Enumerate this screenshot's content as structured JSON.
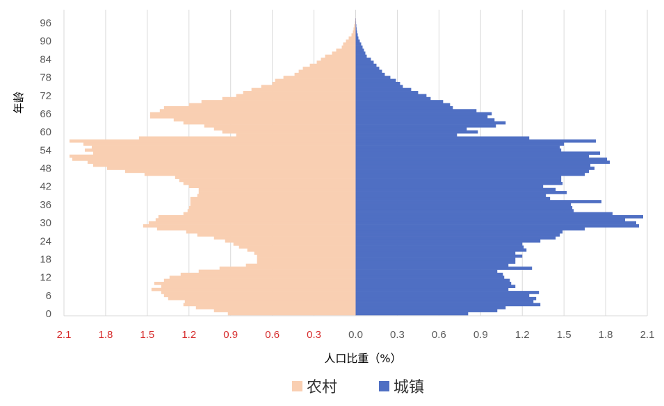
{
  "chart_data": {
    "type": "bar",
    "orientation": "horizontal-pyramid",
    "xlabel": "人口比重（%）",
    "ylabel": "年龄",
    "xlim": [
      -2.1,
      2.1
    ],
    "ylim": [
      0,
      96
    ],
    "grid": true,
    "legend_position": "bottom-center",
    "x_ticks": [
      {
        "value": -2.1,
        "label": "2.1"
      },
      {
        "value": -1.8,
        "label": "1.8"
      },
      {
        "value": -1.5,
        "label": "1.5"
      },
      {
        "value": -1.2,
        "label": "1.2"
      },
      {
        "value": -0.9,
        "label": "0.9"
      },
      {
        "value": -0.6,
        "label": "0.6"
      },
      {
        "value": -0.3,
        "label": "0.3"
      },
      {
        "value": 0.0,
        "label": "0.0"
      },
      {
        "value": 0.3,
        "label": "0.3"
      },
      {
        "value": 0.6,
        "label": "0.6"
      },
      {
        "value": 0.9,
        "label": "0.9"
      },
      {
        "value": 1.2,
        "label": "1.2"
      },
      {
        "value": 1.5,
        "label": "1.5"
      },
      {
        "value": 1.8,
        "label": "1.8"
      },
      {
        "value": 2.1,
        "label": "2.1"
      }
    ],
    "y_ticks": [
      "0",
      "6",
      "12",
      "18",
      "24",
      "30",
      "36",
      "42",
      "48",
      "54",
      "60",
      "66",
      "72",
      "78",
      "84",
      "90",
      "96"
    ],
    "ages": [
      0,
      1,
      2,
      3,
      4,
      5,
      6,
      7,
      8,
      9,
      10,
      11,
      12,
      13,
      14,
      15,
      16,
      17,
      18,
      19,
      20,
      21,
      22,
      23,
      24,
      25,
      26,
      27,
      28,
      29,
      30,
      31,
      32,
      33,
      34,
      35,
      36,
      37,
      38,
      39,
      40,
      41,
      42,
      43,
      44,
      45,
      46,
      47,
      48,
      49,
      50,
      51,
      52,
      53,
      54,
      55,
      56,
      57,
      58,
      59,
      60,
      61,
      62,
      63,
      64,
      65,
      66,
      67,
      68,
      69,
      70,
      71,
      72,
      73,
      74,
      75,
      76,
      77,
      78,
      79,
      80,
      81,
      82,
      83,
      84,
      85,
      86,
      87,
      88,
      89,
      90,
      91,
      92,
      93,
      94,
      95,
      96,
      97
    ],
    "series": [
      {
        "name": "农村",
        "color": "#f9cfb2",
        "side": "left",
        "values": [
          0.92,
          1.02,
          1.15,
          1.24,
          1.23,
          1.35,
          1.38,
          1.4,
          1.47,
          1.4,
          1.45,
          1.38,
          1.34,
          1.26,
          1.13,
          0.98,
          0.79,
          0.71,
          0.71,
          0.71,
          0.73,
          0.78,
          0.84,
          0.88,
          0.94,
          1.02,
          1.14,
          1.22,
          1.43,
          1.53,
          1.49,
          1.44,
          1.42,
          1.24,
          1.21,
          1.2,
          1.19,
          1.19,
          1.19,
          1.14,
          1.13,
          1.13,
          1.2,
          1.24,
          1.27,
          1.3,
          1.52,
          1.66,
          1.79,
          1.89,
          1.93,
          2.04,
          2.06,
          1.89,
          1.95,
          1.9,
          1.96,
          2.06,
          1.56,
          0.86,
          0.96,
          1.02,
          1.09,
          1.24,
          1.31,
          1.48,
          1.48,
          1.41,
          1.38,
          1.2,
          1.11,
          0.96,
          0.86,
          0.81,
          0.75,
          0.68,
          0.6,
          0.58,
          0.52,
          0.44,
          0.41,
          0.38,
          0.33,
          0.28,
          0.25,
          0.22,
          0.17,
          0.14,
          0.1,
          0.09,
          0.07,
          0.05,
          0.03,
          0.02,
          0.015,
          0.01,
          0.005,
          0.003
        ]
      },
      {
        "name": "城镇",
        "color": "#4f6fc3",
        "side": "right",
        "values": [
          0.81,
          1.02,
          1.08,
          1.33,
          1.28,
          1.3,
          1.25,
          1.32,
          1.1,
          1.15,
          1.12,
          1.11,
          1.07,
          1.06,
          1.02,
          1.27,
          1.1,
          1.15,
          1.15,
          1.2,
          1.15,
          1.23,
          1.21,
          1.2,
          1.33,
          1.44,
          1.47,
          1.49,
          1.65,
          2.04,
          2.02,
          1.94,
          2.07,
          1.85,
          1.57,
          1.56,
          1.55,
          1.77,
          1.4,
          1.37,
          1.52,
          1.44,
          1.35,
          1.49,
          1.48,
          1.48,
          1.65,
          1.68,
          1.72,
          1.69,
          1.83,
          1.81,
          1.68,
          1.76,
          1.48,
          1.47,
          1.5,
          1.73,
          1.25,
          0.73,
          0.88,
          0.8,
          1.01,
          1.08,
          1.0,
          0.95,
          0.98,
          0.87,
          0.7,
          0.68,
          0.63,
          0.54,
          0.51,
          0.45,
          0.4,
          0.34,
          0.32,
          0.29,
          0.25,
          0.21,
          0.19,
          0.17,
          0.15,
          0.13,
          0.11,
          0.08,
          0.07,
          0.06,
          0.05,
          0.04,
          0.03,
          0.02,
          0.015,
          0.01,
          0.007,
          0.005,
          0.003,
          0.002
        ]
      }
    ]
  }
}
